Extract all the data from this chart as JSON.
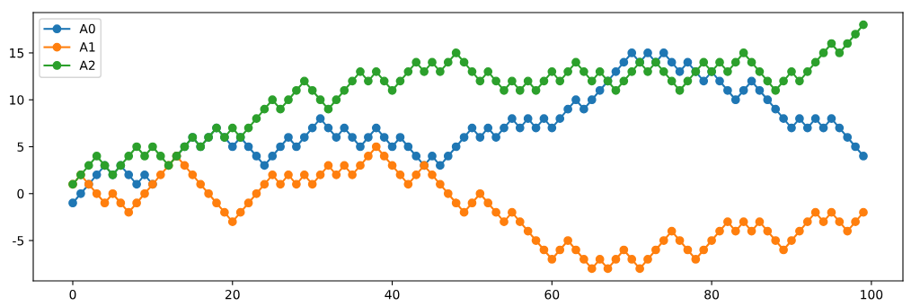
{
  "chart_data": {
    "type": "line",
    "marker": "circle",
    "line_style": "solid",
    "legend": "top left",
    "grid": false,
    "x": [
      0,
      1,
      2,
      3,
      4,
      5,
      6,
      7,
      8,
      9,
      10,
      11,
      12,
      13,
      14,
      15,
      16,
      17,
      18,
      19,
      20,
      21,
      22,
      23,
      24,
      25,
      26,
      27,
      28,
      29,
      30,
      31,
      32,
      33,
      34,
      35,
      36,
      37,
      38,
      39,
      40,
      41,
      42,
      43,
      44,
      45,
      46,
      47,
      48,
      49,
      50,
      51,
      52,
      53,
      54,
      55,
      56,
      57,
      58,
      59,
      60,
      61,
      62,
      63,
      64,
      65,
      66,
      67,
      68,
      69,
      70,
      71,
      72,
      73,
      74,
      75,
      76,
      77,
      78,
      79,
      80,
      81,
      82,
      83,
      84,
      85,
      86,
      87,
      88,
      89,
      90,
      91,
      92,
      93,
      94,
      95,
      96,
      97,
      98,
      99
    ],
    "series": [
      {
        "name": "A0",
        "color": "#1f77b4",
        "values": [
          -1,
          0,
          1,
          2,
          3,
          2,
          3,
          2,
          1,
          2,
          1,
          null,
          null,
          4,
          5,
          6,
          5,
          6,
          7,
          6,
          5,
          6,
          5,
          4,
          3,
          4,
          5,
          6,
          5,
          6,
          7,
          8,
          7,
          6,
          7,
          6,
          5,
          6,
          7,
          6,
          5,
          6,
          5,
          4,
          3,
          4,
          3,
          4,
          5,
          6,
          7,
          6,
          7,
          6,
          7,
          8,
          7,
          8,
          7,
          8,
          7,
          8,
          9,
          10,
          9,
          10,
          11,
          12,
          13,
          14,
          15,
          14,
          15,
          14,
          15,
          14,
          13,
          14,
          13,
          12,
          13,
          12,
          11,
          10,
          11,
          12,
          11,
          10,
          9,
          8,
          7,
          8,
          7,
          8,
          7,
          8,
          7,
          6,
          5,
          4
        ]
      },
      {
        "name": "A1",
        "color": "#ff7f0e",
        "values": [
          1,
          2,
          1,
          0,
          -1,
          0,
          -1,
          -2,
          -1,
          0,
          1,
          2,
          3,
          4,
          3,
          2,
          1,
          0,
          -1,
          -2,
          -3,
          -2,
          -1,
          0,
          1,
          2,
          1,
          2,
          1,
          2,
          1,
          2,
          3,
          2,
          3,
          2,
          3,
          4,
          5,
          4,
          3,
          2,
          1,
          2,
          3,
          2,
          1,
          0,
          -1,
          -2,
          -1,
          0,
          -1,
          -2,
          -3,
          -2,
          -3,
          -4,
          -5,
          -6,
          -7,
          -6,
          -5,
          -6,
          -7,
          -8,
          -7,
          -8,
          -7,
          -6,
          -7,
          -8,
          -7,
          -6,
          -5,
          -4,
          -5,
          -6,
          -7,
          -6,
          -5,
          -4,
          -3,
          -4,
          -3,
          -4,
          -3,
          -4,
          -5,
          -6,
          -5,
          -4,
          -3,
          -2,
          -3,
          -2,
          -3,
          -4,
          -3,
          -2
        ]
      },
      {
        "name": "A2",
        "color": "#2ca02c",
        "values": [
          1,
          2,
          3,
          4,
          3,
          2,
          3,
          4,
          5,
          4,
          5,
          4,
          3,
          4,
          5,
          6,
          5,
          6,
          7,
          6,
          7,
          6,
          7,
          8,
          9,
          10,
          9,
          10,
          11,
          12,
          11,
          10,
          9,
          10,
          11,
          12,
          13,
          12,
          13,
          12,
          11,
          12,
          13,
          14,
          13,
          14,
          13,
          14,
          15,
          14,
          13,
          12,
          13,
          12,
          11,
          12,
          11,
          12,
          11,
          12,
          13,
          12,
          13,
          14,
          13,
          12,
          13,
          12,
          11,
          12,
          13,
          14,
          13,
          14,
          13,
          12,
          11,
          12,
          13,
          14,
          13,
          14,
          13,
          14,
          15,
          14,
          13,
          12,
          11,
          12,
          13,
          12,
          13,
          14,
          15,
          16,
          15,
          16,
          17,
          18
        ]
      }
    ],
    "xlim": [
      -4.95,
      103.95
    ],
    "xticks": [
      0,
      20,
      40,
      60,
      80,
      100
    ],
    "ylim": [
      -9.3,
      19.3
    ],
    "yticks": [
      -5,
      0,
      5,
      10,
      15
    ]
  }
}
